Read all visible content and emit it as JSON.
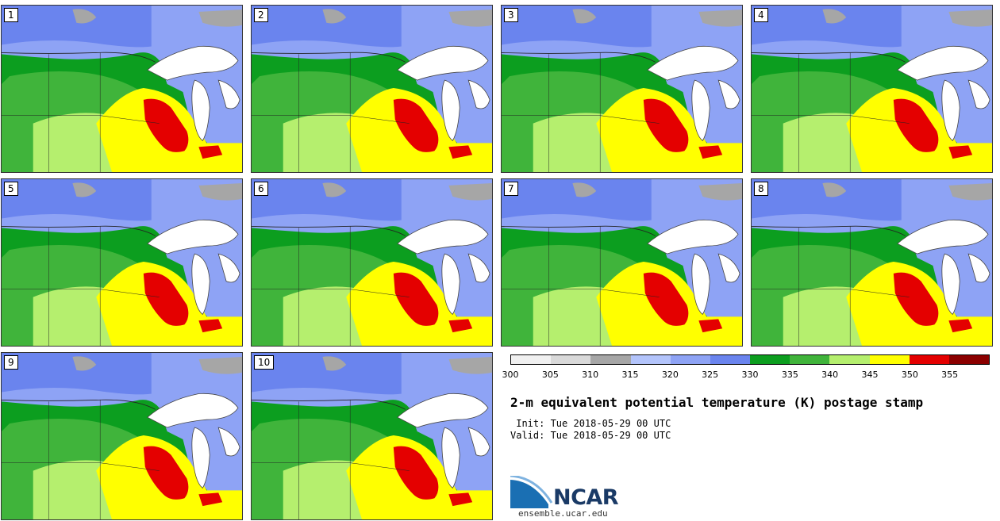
{
  "panels": [
    {
      "label": "1"
    },
    {
      "label": "2"
    },
    {
      "label": "3"
    },
    {
      "label": "4"
    },
    {
      "label": "5"
    },
    {
      "label": "6"
    },
    {
      "label": "7"
    },
    {
      "label": "8"
    },
    {
      "label": "9"
    },
    {
      "label": "10"
    }
  ],
  "colorbar": {
    "colors": [
      "#f0f0f0",
      "#d9d9d9",
      "#a6a6a6",
      "#b3c4fb",
      "#8ea3f5",
      "#6a84ee",
      "#0c9e1f",
      "#40b43b",
      "#b5ef6e",
      "#ffff00",
      "#e40000",
      "#8b0000"
    ],
    "ticks": [
      "300",
      "305",
      "310",
      "315",
      "320",
      "325",
      "330",
      "335",
      "340",
      "345",
      "350",
      "355"
    ]
  },
  "title": "2-m equivalent potential temperature (K) postage stamp",
  "init": " Init: Tue 2018-05-29 00 UTC",
  "valid": "Valid: Tue 2018-05-29 00 UTC",
  "logo": {
    "text": "NCAR",
    "site": "ensemble.ucar.edu",
    "color": "#1a6fb3"
  }
}
